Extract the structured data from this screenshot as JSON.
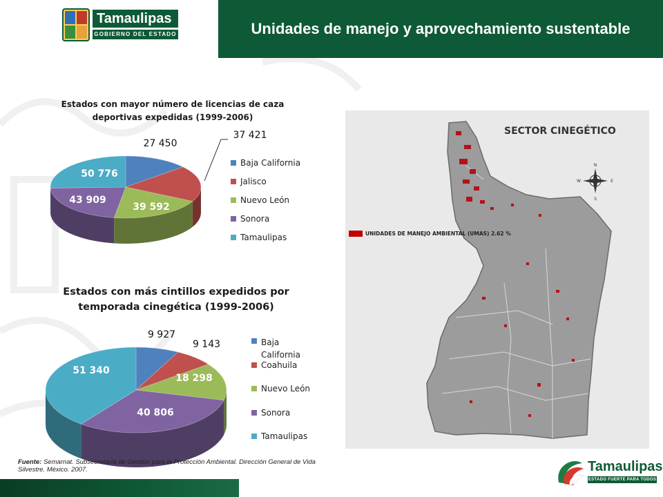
{
  "header": {
    "title": "Unidades de manejo y aprovechamiento sustentable",
    "logo_name": "Tamaulipas",
    "logo_sub": "GOBIERNO DEL ESTADO"
  },
  "chart_data": [
    {
      "type": "pie",
      "title": "Estados con mayor número de licencias de caza deportivas expedidas  (1999-2006)",
      "categories": [
        "Baja California",
        "Jalisco",
        "Nuevo León",
        "Sonora",
        "Tamaulipas"
      ],
      "values": [
        27450,
        37421,
        39592,
        43909,
        50776
      ],
      "data_labels": [
        "27 450",
        "37 421",
        "39 592",
        "43 909",
        "50 776"
      ],
      "colors": [
        "#4f81bd",
        "#c0504d",
        "#9bbb59",
        "#8064a2",
        "#4bacc6"
      ],
      "legend": "right"
    },
    {
      "type": "pie",
      "title": "Estados con más cintillos expedidos por temporada cinegética (1999-2006)",
      "categories": [
        "Baja California",
        "Coahuila",
        "Nuevo León",
        "Sonora",
        "Tamaulipas"
      ],
      "values": [
        9927,
        9143,
        18298,
        40806,
        51340
      ],
      "data_labels": [
        "9 927",
        "9 143",
        "18 298",
        "40 806",
        "51 340"
      ],
      "colors": [
        "#4f81bd",
        "#c0504d",
        "#9bbb59",
        "#8064a2",
        "#4bacc6"
      ],
      "legend": "right"
    }
  ],
  "map": {
    "title": "SECTOR CINEGÉTICO",
    "legend_label": "UNIDADES DE MANEJO AMBIENTAL (UMAS) 2.62 %",
    "legend_color": "#c00000",
    "compass": [
      "N",
      "S",
      "E",
      "W"
    ]
  },
  "source": {
    "label": "Fuente:",
    "text": " Semarnat. Subsecretaría de Gestión para la Protección Ambiental. Dirección General de Vida Silvestre. México. 2007."
  },
  "footer": {
    "logo_name": "Tamaulipas",
    "logo_sub": "ESTADO FUERTE PARA TODOS"
  }
}
